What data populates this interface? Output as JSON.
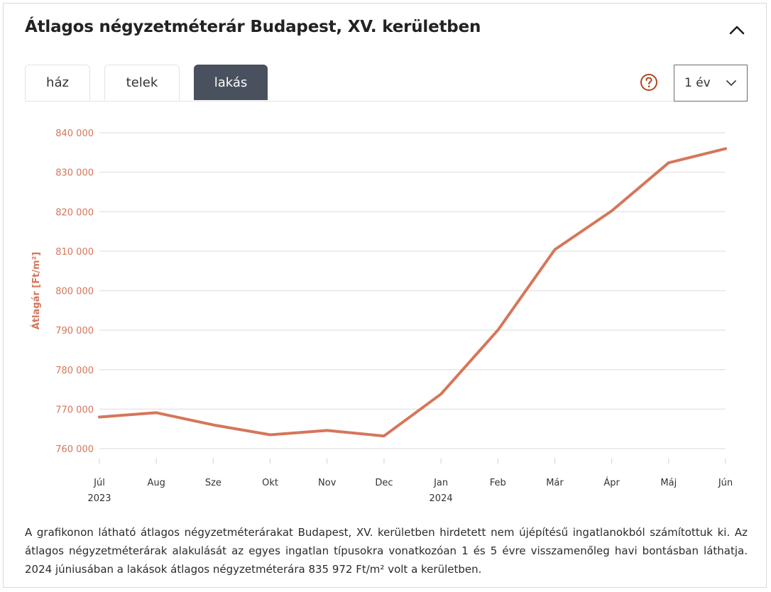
{
  "header": {
    "title": "Átlagos négyzetméterár Budapest, XV. kerületben"
  },
  "icons": {
    "collapse": "chevron-up-icon",
    "help": "question-circle-icon",
    "dropdown": "chevron-down-icon"
  },
  "tabs": [
    {
      "label": "ház",
      "active": false
    },
    {
      "label": "telek",
      "active": false
    },
    {
      "label": "lakás",
      "active": true
    }
  ],
  "period_select": {
    "value": "1 év"
  },
  "colors": {
    "accent": "#d6765a",
    "axis_text": "#d6765a",
    "tab_active_bg": "#49505e",
    "help_icon": "#b4431f"
  },
  "chart_data": {
    "type": "line",
    "ylabel": "Átlagár [Ft/m²]",
    "xlabel": "",
    "ylim": [
      760000,
      840000
    ],
    "yticks": [
      760000,
      770000,
      780000,
      790000,
      800000,
      810000,
      820000,
      830000,
      840000
    ],
    "ytick_labels": [
      "760 000",
      "770 000",
      "780 000",
      "790 000",
      "800 000",
      "810 000",
      "820 000",
      "830 000",
      "840 000"
    ],
    "categories": [
      "Júl",
      "Aug",
      "Sze",
      "Okt",
      "Nov",
      "Dec",
      "Jan",
      "Feb",
      "Már",
      "Ápr",
      "Máj",
      "Jún"
    ],
    "year_labels": [
      {
        "index": 0,
        "label": "2023"
      },
      {
        "index": 6,
        "label": "2024"
      }
    ],
    "series": [
      {
        "name": "lakás",
        "values": [
          768000,
          769100,
          766000,
          763500,
          764600,
          763200,
          773800,
          790000,
          810400,
          820200,
          832400,
          835972
        ]
      }
    ],
    "grid": true
  },
  "description": "A grafikonon látható átlagos négyzetméterárakat Budapest, XV. kerületben hirdetett nem újépítésű ingatlanokból számítottuk ki. Az átlagos négyzetméterárak alakulását az egyes ingatlan típusokra vonatkozóan 1 és 5 évre visszamenőleg havi bontásban láthatja. 2024 júniusában a lakások átlagos négyzetméterára 835 972 Ft/m² volt a kerületben."
}
